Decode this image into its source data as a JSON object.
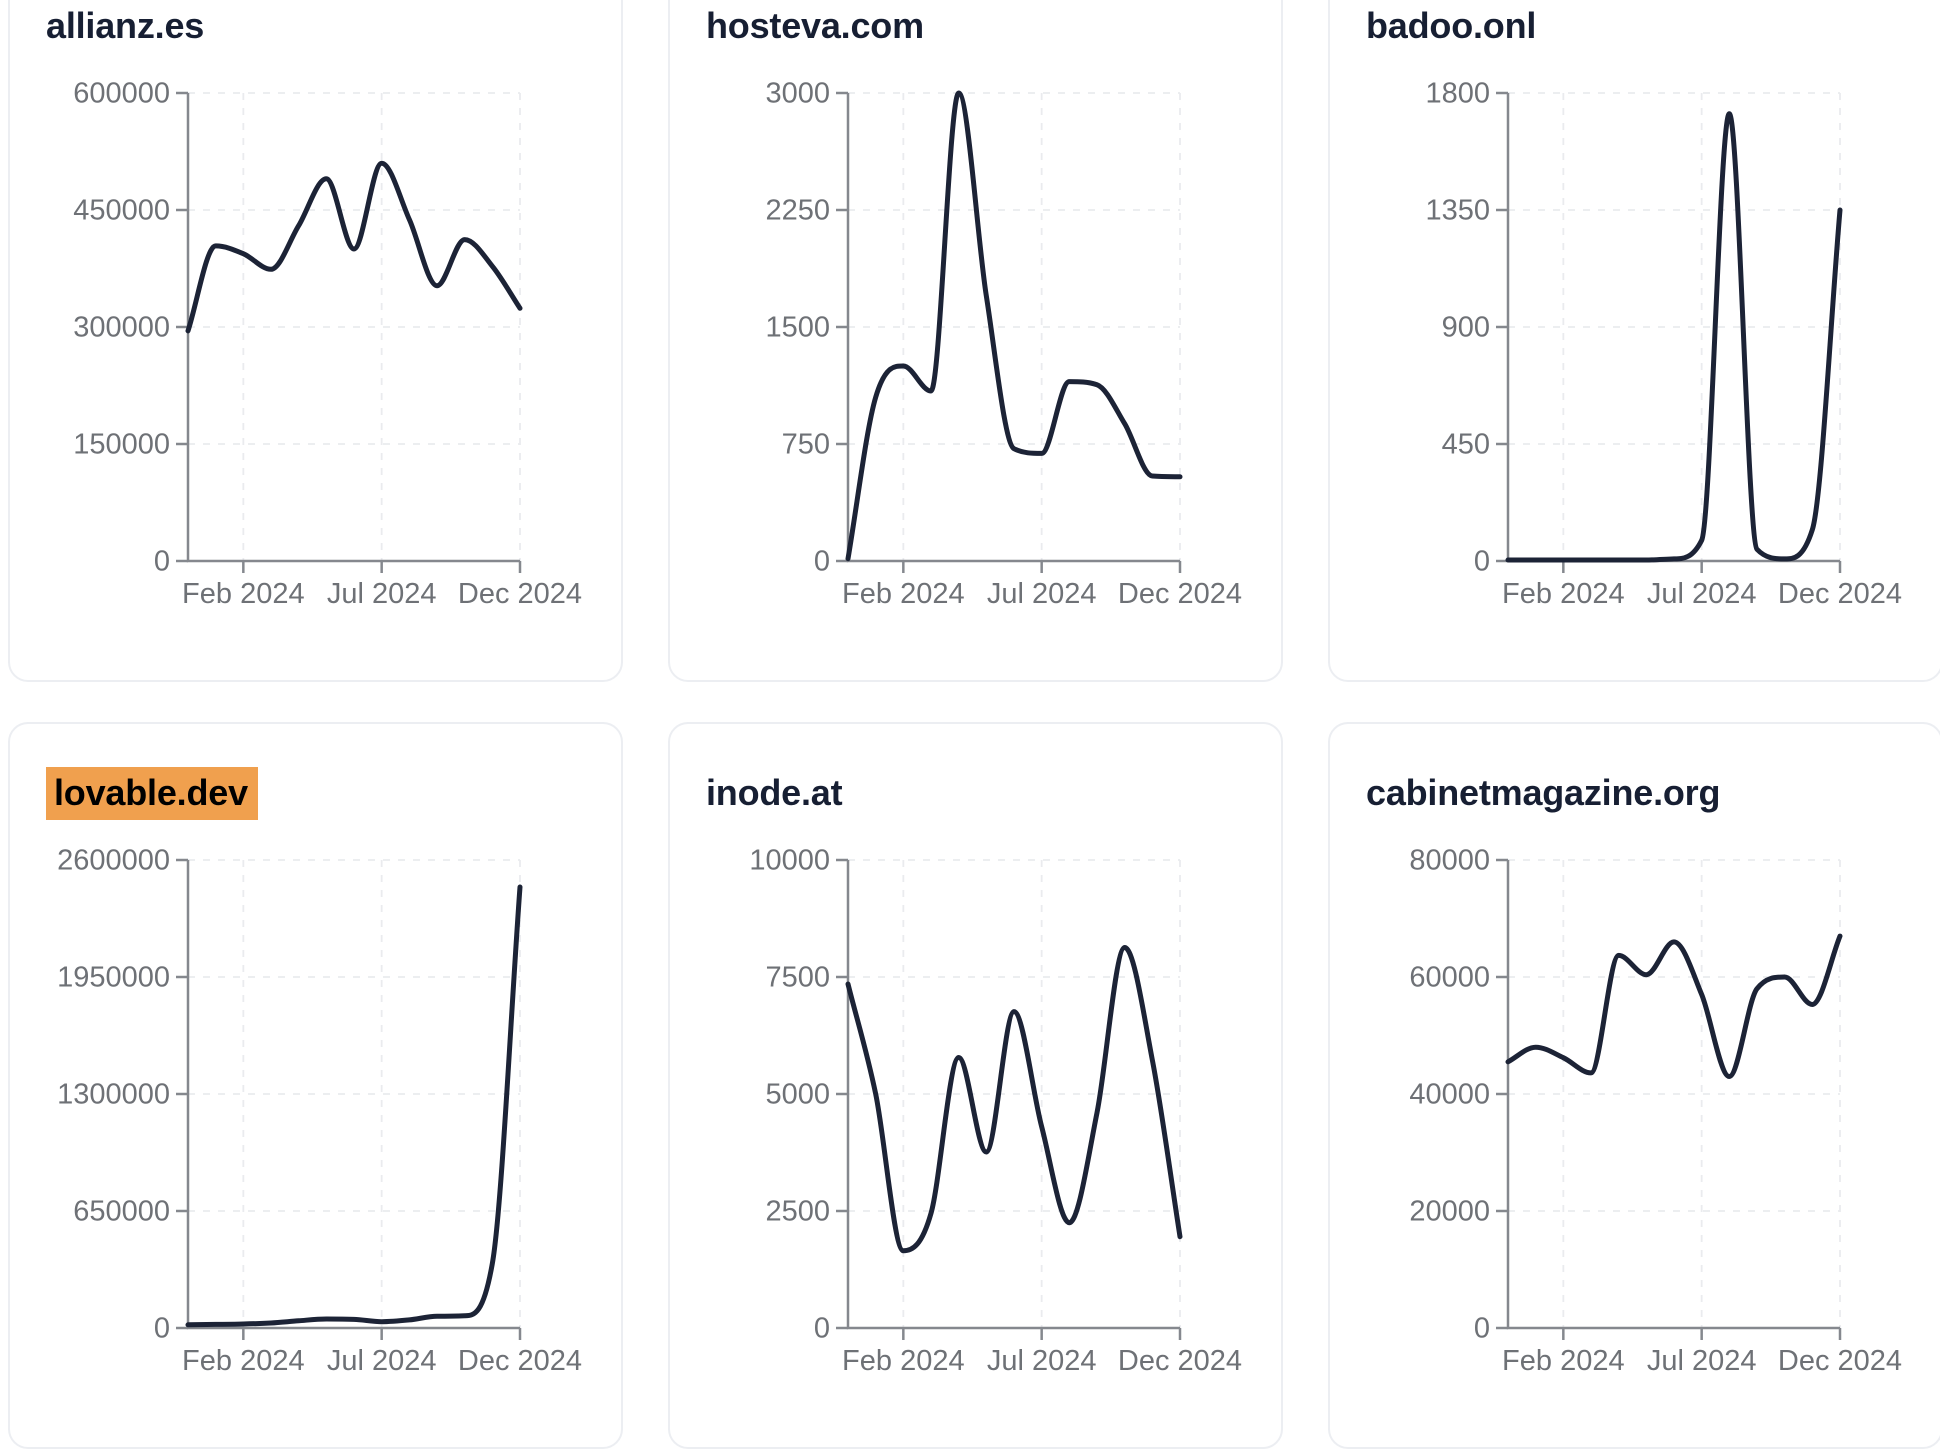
{
  "page": {
    "kind": "traffic-trend chart grid",
    "highlight_color": "#f0a04e",
    "line_color": "#1c2336",
    "title_color": "#171f33",
    "tick_label_color": "#6e7176",
    "axis_color": "#85888e",
    "grid_color": "#eaebee",
    "card_border_color": "#eceef2",
    "card_background": "#ffffff"
  },
  "chart_data": [
    {
      "type": "line",
      "title": "allianz.es",
      "highlighted": false,
      "x": [
        "Dec 2023",
        "Jan 2024",
        "Feb 2024",
        "Mar 2024",
        "Apr 2024",
        "May 2024",
        "Jun 2024",
        "Jul 2024",
        "Aug 2024",
        "Sep 2024",
        "Oct 2024",
        "Nov 2024",
        "Dec 2024"
      ],
      "x_tick_labels": [
        "Feb 2024",
        "Jul 2024",
        "Dec 2024"
      ],
      "x_tick_month_indices": [
        2,
        7,
        12
      ],
      "values": [
        295000,
        404000,
        394000,
        374000,
        430000,
        490000,
        400000,
        510000,
        438000,
        353000,
        412000,
        378000,
        324000
      ],
      "y_ticks": [
        0,
        150000,
        300000,
        450000,
        600000
      ],
      "ylim": [
        0,
        600000
      ],
      "grid": true,
      "legend": "none"
    },
    {
      "type": "line",
      "title": "hosteva.com",
      "highlighted": false,
      "x": [
        "Dec 2023",
        "Jan 2024",
        "Feb 2024",
        "Mar 2024",
        "Apr 2024",
        "May 2024",
        "Jun 2024",
        "Jul 2024",
        "Aug 2024",
        "Sep 2024",
        "Oct 2024",
        "Nov 2024",
        "Dec 2024"
      ],
      "x_tick_labels": [
        "Feb 2024",
        "Jul 2024",
        "Dec 2024"
      ],
      "x_tick_month_indices": [
        2,
        7,
        12
      ],
      "values": [
        15,
        1050,
        1250,
        1090,
        3000,
        1700,
        720,
        690,
        1150,
        1130,
        880,
        545,
        540
      ],
      "y_ticks": [
        0,
        750,
        1500,
        2250,
        3000
      ],
      "ylim": [
        0,
        3000
      ],
      "grid": true,
      "legend": "none"
    },
    {
      "type": "line",
      "title": "badoo.onl",
      "highlighted": false,
      "x": [
        "Dec 2023",
        "Jan 2024",
        "Feb 2024",
        "Mar 2024",
        "Apr 2024",
        "May 2024",
        "Jun 2024",
        "Jul 2024",
        "Aug 2024",
        "Sep 2024",
        "Oct 2024",
        "Nov 2024",
        "Dec 2024"
      ],
      "x_tick_labels": [
        "Feb 2024",
        "Jul 2024",
        "Dec 2024"
      ],
      "x_tick_month_indices": [
        2,
        7,
        12
      ],
      "values": [
        4,
        4,
        4,
        4,
        4,
        4,
        8,
        80,
        1720,
        45,
        8,
        120,
        1350
      ],
      "y_ticks": [
        0,
        450,
        900,
        1350,
        1800
      ],
      "ylim": [
        0,
        1800
      ],
      "grid": true,
      "legend": "none"
    },
    {
      "type": "line",
      "title": "lovable.dev",
      "highlighted": true,
      "x": [
        "Dec 2023",
        "Jan 2024",
        "Feb 2024",
        "Mar 2024",
        "Apr 2024",
        "May 2024",
        "Jun 2024",
        "Jul 2024",
        "Aug 2024",
        "Sep 2024",
        "Oct 2024",
        "Nov 2024",
        "Dec 2024"
      ],
      "x_tick_labels": [
        "Feb 2024",
        "Jul 2024",
        "Dec 2024"
      ],
      "x_tick_month_indices": [
        2,
        7,
        12
      ],
      "values": [
        18000,
        20000,
        22000,
        28000,
        40000,
        50000,
        48000,
        35000,
        45000,
        65000,
        68000,
        357000,
        2450000
      ],
      "y_ticks": [
        0,
        650000,
        1300000,
        1950000,
        2600000
      ],
      "ylim": [
        0,
        2600000
      ],
      "grid": true,
      "legend": "none"
    },
    {
      "type": "line",
      "title": "inode.at",
      "highlighted": false,
      "x": [
        "Dec 2023",
        "Jan 2024",
        "Feb 2024",
        "Mar 2024",
        "Apr 2024",
        "May 2024",
        "Jun 2024",
        "Jul 2024",
        "Aug 2024",
        "Sep 2024",
        "Oct 2024",
        "Nov 2024",
        "Dec 2024"
      ],
      "x_tick_labels": [
        "Feb 2024",
        "Jul 2024",
        "Dec 2024"
      ],
      "x_tick_month_indices": [
        2,
        7,
        12
      ],
      "values": [
        7350,
        5000,
        1650,
        2450,
        5780,
        3760,
        6760,
        4300,
        2250,
        4600,
        8130,
        5730,
        1950
      ],
      "y_ticks": [
        0,
        2500,
        5000,
        7500,
        10000
      ],
      "ylim": [
        0,
        10000
      ],
      "grid": true,
      "legend": "none"
    },
    {
      "type": "line",
      "title": "cabinetmagazine.org",
      "highlighted": false,
      "x": [
        "Dec 2023",
        "Jan 2024",
        "Feb 2024",
        "Mar 2024",
        "Apr 2024",
        "May 2024",
        "Jun 2024",
        "Jul 2024",
        "Aug 2024",
        "Sep 2024",
        "Oct 2024",
        "Nov 2024",
        "Dec 2024"
      ],
      "x_tick_labels": [
        "Feb 2024",
        "Jul 2024",
        "Dec 2024"
      ],
      "x_tick_month_indices": [
        2,
        7,
        12
      ],
      "values": [
        45500,
        48000,
        46200,
        43600,
        63700,
        60400,
        66000,
        57000,
        43000,
        58000,
        60000,
        55300,
        67000
      ],
      "y_ticks": [
        0,
        20000,
        40000,
        60000,
        80000
      ],
      "ylim": [
        0,
        80000
      ],
      "grid": true,
      "legend": "none"
    }
  ]
}
